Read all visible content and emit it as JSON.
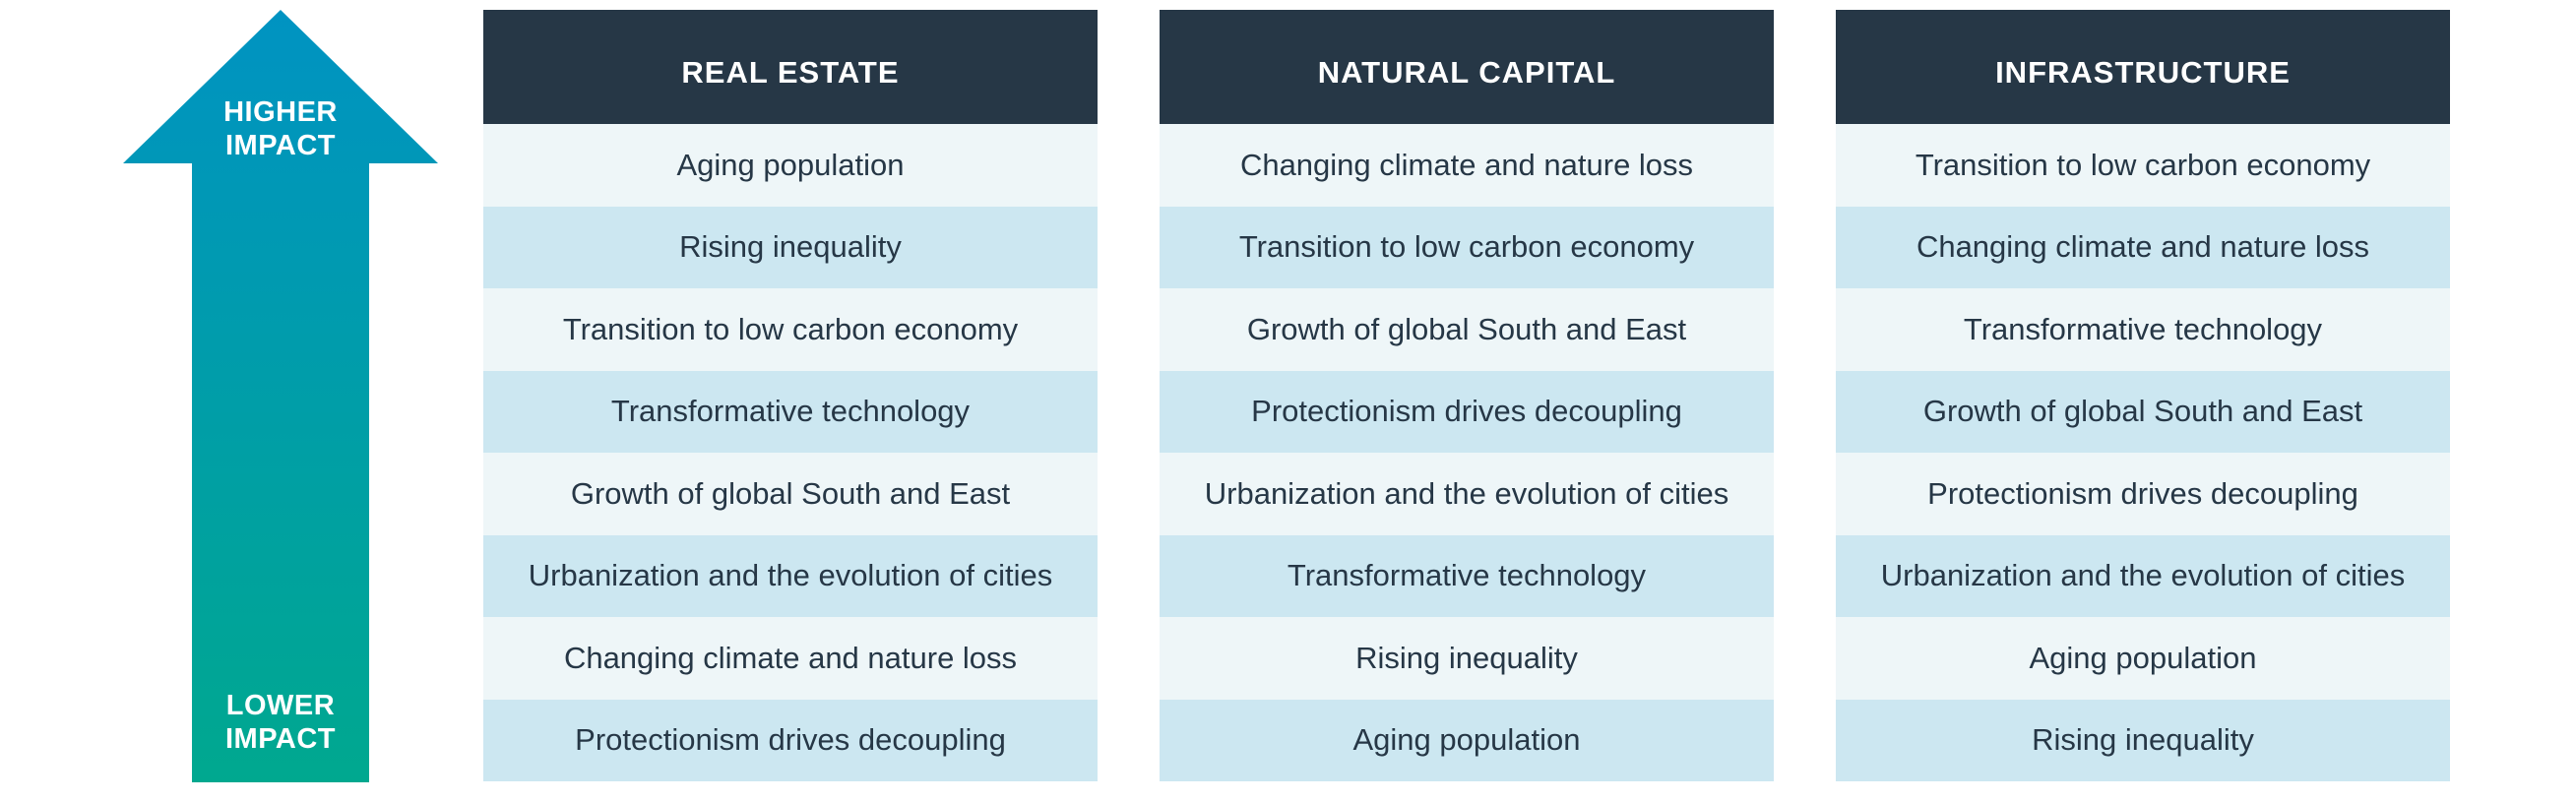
{
  "arrow": {
    "top_label_line1": "HIGHER",
    "top_label_line2": "IMPACT",
    "bottom_label_line1": "LOWER",
    "bottom_label_line2": "IMPACT",
    "color_top": "#0093c2",
    "color_bottom": "#00a88f"
  },
  "colors": {
    "header_bg": "#263746",
    "row_light": "#eef6f8",
    "row_dark": "#cce7f1",
    "text": "#263746"
  },
  "columns": [
    {
      "title": "REAL ESTATE",
      "items": [
        "Aging population",
        "Rising inequality",
        "Transition to low carbon economy",
        "Transformative technology",
        "Growth of global South and East",
        "Urbanization and the evolution of cities",
        "Changing climate and nature loss",
        "Protectionism drives decoupling"
      ]
    },
    {
      "title": "NATURAL CAPITAL",
      "items": [
        "Changing climate and nature loss",
        "Transition to low carbon economy",
        "Growth of global South and East",
        "Protectionism drives decoupling",
        "Urbanization and the evolution of cities",
        "Transformative technology",
        "Rising inequality",
        "Aging population"
      ]
    },
    {
      "title": "INFRASTRUCTURE",
      "items": [
        "Transition to low carbon economy",
        "Changing climate and nature loss",
        "Transformative technology",
        "Growth of global South and East",
        "Protectionism drives decoupling",
        "Urbanization and the evolution of cities",
        "Aging population",
        "Rising inequality"
      ]
    }
  ]
}
